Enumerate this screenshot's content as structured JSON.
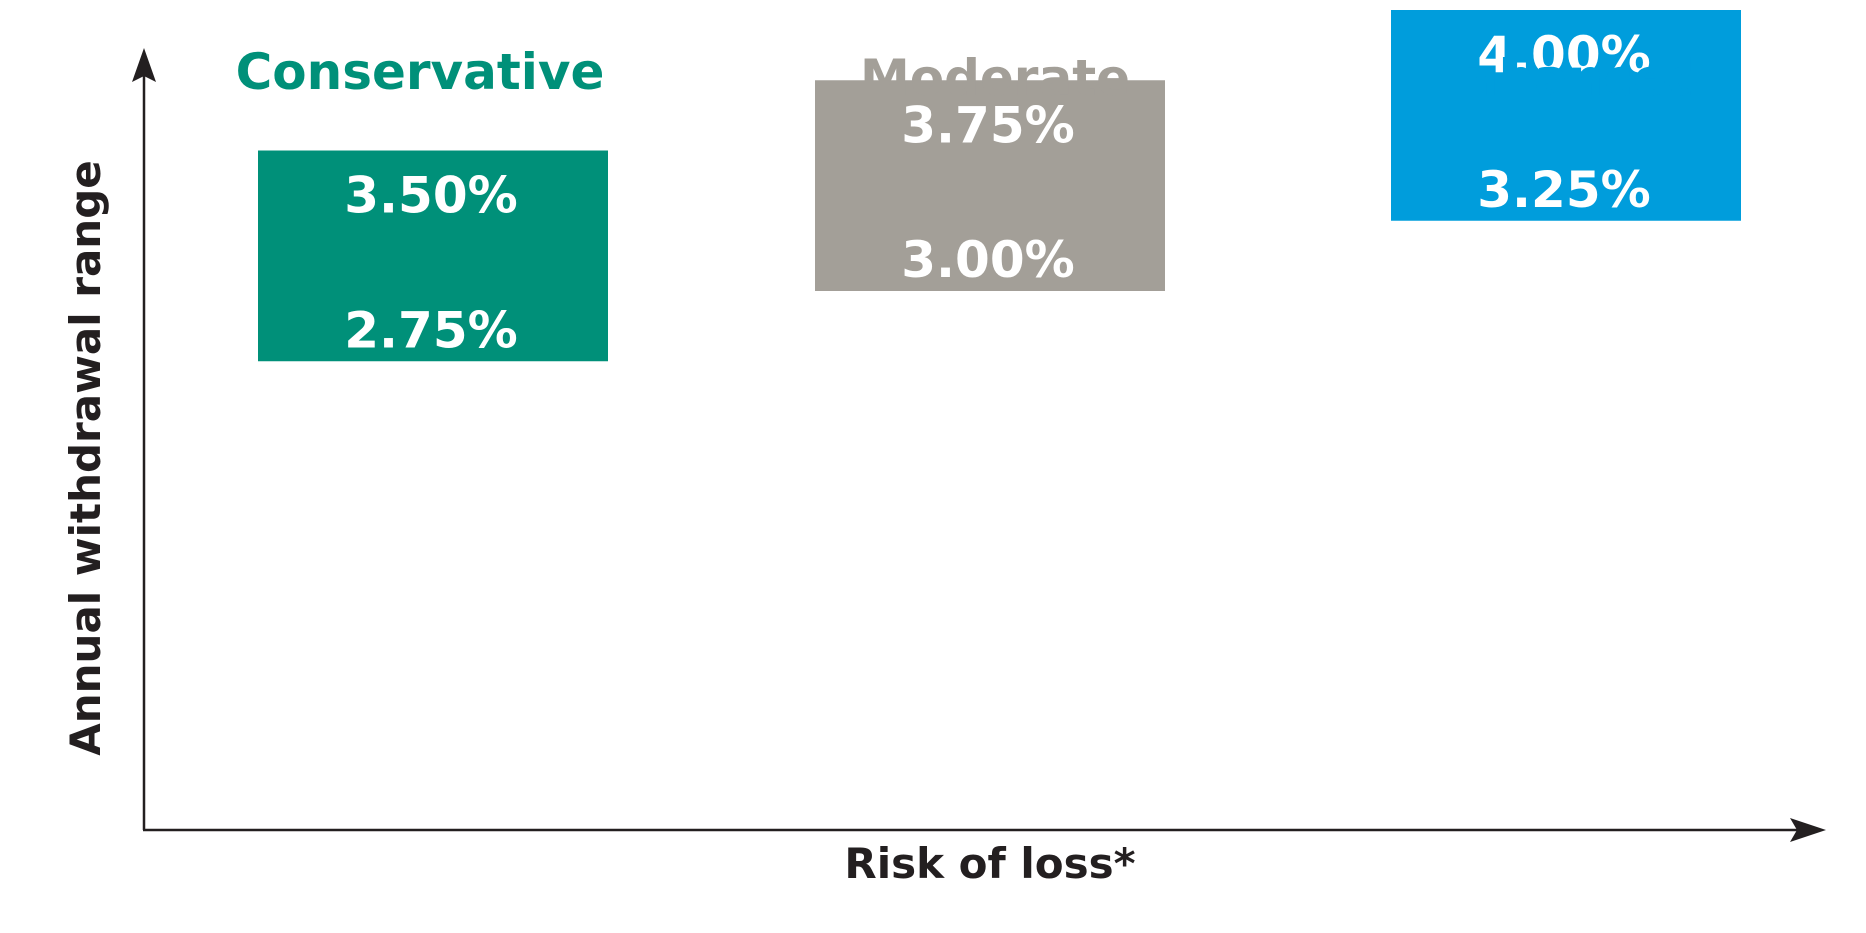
{
  "chart_data": {
    "type": "bar",
    "title": "",
    "xlabel": "Risk of loss*",
    "ylabel": "Annual withdrawal range",
    "ylim": [
      2.0,
      4.75
    ],
    "categories": [
      "Conservative",
      "Moderate",
      "Enhanced"
    ],
    "ranges": [
      {
        "category": "Conservative",
        "low": 2.75,
        "high": 3.5,
        "low_label": "2.75%",
        "high_label": "3.50%",
        "color": "#009079"
      },
      {
        "category": "Moderate",
        "low": 3.0,
        "high": 3.75,
        "low_label": "3.00%",
        "high_label": "3.75%",
        "color": "#a39f98"
      },
      {
        "category": "Enhanced",
        "low": 3.25,
        "high": 4.0,
        "low_label": "3.25%",
        "high_label": "4.00%",
        "color": "#009ddc"
      }
    ],
    "grid": false,
    "legend": "none"
  },
  "colors": {
    "axis": "#231f20"
  }
}
